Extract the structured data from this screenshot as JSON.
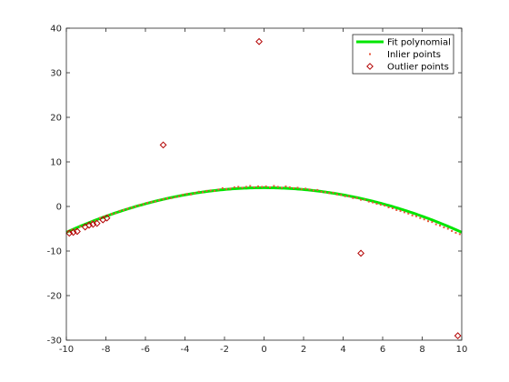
{
  "chart_data": {
    "type": "scatter",
    "xlim": [
      -10,
      10
    ],
    "ylim": [
      -30,
      40
    ],
    "x_ticks": [
      -10,
      -8,
      -6,
      -4,
      -2,
      0,
      2,
      4,
      6,
      8,
      10
    ],
    "y_ticks": [
      -30,
      -20,
      -10,
      0,
      10,
      20,
      30,
      40
    ],
    "grid": false,
    "legend_position": "top-right",
    "series": [
      {
        "name": "Fit polynomial",
        "kind": "line",
        "color": "#00e600",
        "coefficients": [
          -0.1,
          0,
          4.2
        ],
        "x_range": [
          -10,
          10
        ]
      },
      {
        "name": "Inlier points",
        "kind": "scatter",
        "color": "#e8553a",
        "marker": "dot",
        "x": [
          -9.9,
          -9.7,
          -9.5,
          -9.3,
          -9.1,
          -8.9,
          -8.7,
          -8.5,
          -8.3,
          -8.1,
          -7.9,
          -7.7,
          -7.5,
          -7.3,
          -7.1,
          -6.9,
          -6.7,
          -6.5,
          -6.3,
          -6.1,
          -5.9,
          -5.7,
          -5.5,
          -5.3,
          -5.1,
          -4.9,
          -4.7,
          -4.5,
          -4.3,
          -4.1,
          -3.9,
          -3.7,
          -3.5,
          -3.3,
          -3.1,
          -2.9,
          -2.7,
          -2.5,
          -2.3,
          -2.1,
          -1.9,
          -1.7,
          -1.5,
          -1.3,
          -1.1,
          -0.9,
          -0.7,
          -0.5,
          -0.3,
          -0.1,
          0.1,
          0.3,
          0.5,
          0.7,
          0.9,
          1.1,
          1.3,
          1.5,
          1.7,
          1.9,
          2.1,
          2.3,
          2.5,
          2.7,
          2.9,
          3.1,
          3.3,
          3.5,
          3.7,
          3.9,
          4.1,
          4.3,
          4.5,
          4.7,
          4.9,
          5.1,
          5.3,
          5.5,
          5.7,
          5.9,
          6.1,
          6.3,
          6.5,
          6.7,
          6.9,
          7.1,
          7.3,
          7.5,
          7.7,
          7.9,
          8.1,
          8.3,
          8.5,
          8.7,
          8.9,
          9.1,
          9.3,
          9.5,
          9.7,
          9.9
        ],
        "y": [
          -5.6,
          -5.2,
          -5.1,
          -4.5,
          -4.2,
          -3.8,
          -3.4,
          -3.2,
          -2.6,
          -2.3,
          -2.0,
          -1.7,
          -1.5,
          -1.0,
          -0.8,
          -0.5,
          -0.3,
          0.0,
          0.3,
          0.5,
          0.8,
          1.0,
          1.1,
          1.4,
          1.6,
          1.8,
          1.9,
          2.1,
          2.3,
          2.6,
          2.8,
          2.7,
          3.0,
          3.3,
          3.2,
          3.5,
          3.6,
          3.5,
          3.8,
          4.1,
          3.9,
          4.0,
          4.3,
          4.4,
          4.2,
          4.4,
          4.6,
          4.3,
          4.5,
          4.4,
          4.5,
          4.3,
          4.6,
          4.4,
          4.2,
          4.5,
          4.3,
          4.1,
          4.2,
          3.9,
          4.0,
          3.8,
          3.6,
          3.7,
          3.3,
          3.2,
          3.0,
          3.1,
          2.7,
          2.6,
          2.3,
          2.3,
          1.9,
          1.9,
          1.5,
          1.5,
          1.1,
          0.9,
          0.6,
          0.4,
          0.2,
          -0.2,
          -0.4,
          -0.8,
          -1.0,
          -1.3,
          -1.6,
          -2.0,
          -2.2,
          -2.6,
          -2.9,
          -3.3,
          -3.5,
          -4.0,
          -4.3,
          -4.7,
          -5.0,
          -5.5,
          -5.9,
          -6.2
        ]
      },
      {
        "name": "Outlier points",
        "kind": "scatter",
        "color": "#b30000",
        "marker": "diamond",
        "x": [
          -9.85,
          -9.65,
          -9.45,
          -9.05,
          -8.85,
          -8.65,
          -8.45,
          -8.15,
          -7.95,
          -5.1,
          -0.25,
          4.9,
          9.8
        ],
        "y": [
          -6.0,
          -5.8,
          -5.6,
          -4.6,
          -4.2,
          -4.0,
          -3.8,
          -3.0,
          -2.6,
          13.8,
          37.0,
          -10.5,
          -29.0
        ]
      }
    ]
  }
}
